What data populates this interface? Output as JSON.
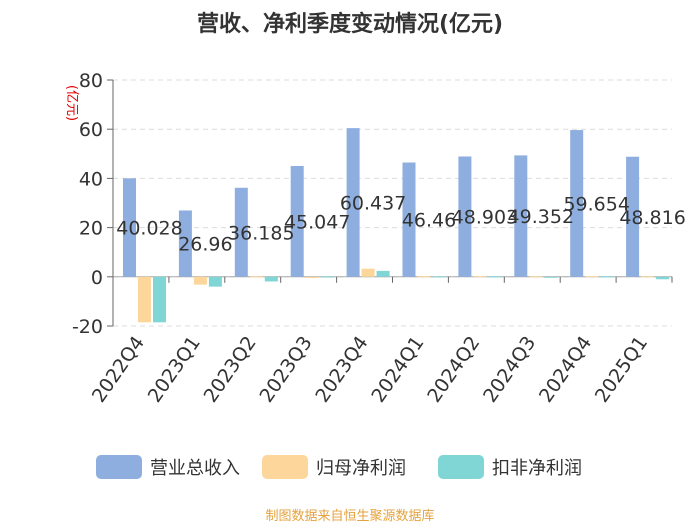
{
  "chart_data": {
    "type": "bar",
    "title": "营收、净利季度变动情况(亿元)",
    "ylabel": "(亿元)",
    "xlabel": "",
    "ylim": [
      -20,
      80
    ],
    "yticks": [
      -20,
      0,
      20,
      40,
      60,
      80
    ],
    "grid": true,
    "legend_position": "bottom",
    "categories": [
      "2022Q4",
      "2023Q1",
      "2023Q2",
      "2023Q3",
      "2023Q4",
      "2024Q1",
      "2024Q2",
      "2024Q3",
      "2024Q4",
      "2025Q1"
    ],
    "series": [
      {
        "name": "营业总收入",
        "color": "#8eaedf",
        "show_labels": true,
        "values": [
          40.028,
          26.96,
          36.185,
          45.047,
          60.437,
          46.46,
          48.903,
          49.352,
          59.654,
          48.816
        ]
      },
      {
        "name": "归母净利润",
        "color": "#fdd69b",
        "show_labels": false,
        "values": [
          -18.5,
          -3.2,
          0.15,
          -0.5,
          3.3,
          0.2,
          0.25,
          0.15,
          0.3,
          0.2
        ]
      },
      {
        "name": "扣非净利润",
        "color": "#7fd6d4",
        "show_labels": false,
        "values": [
          -18.5,
          -4.0,
          -1.9,
          0.1,
          2.4,
          0.15,
          0.2,
          -0.4,
          0.2,
          -1.0
        ]
      }
    ]
  },
  "source": "制图数据来自恒生聚源数据库"
}
